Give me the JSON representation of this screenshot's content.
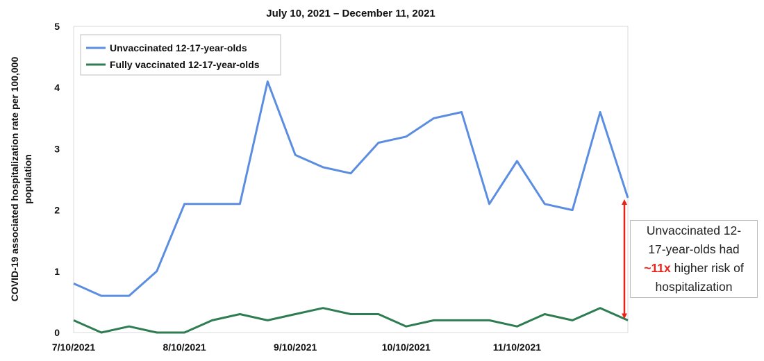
{
  "chart_data": {
    "type": "line",
    "title": "July 10, 2021 – December 11, 2021",
    "ylabel_lines": [
      "COVID-19 associated hospitalization rate per 100,000",
      "population"
    ],
    "xlabel": "",
    "ylim": [
      0,
      5
    ],
    "yticks": [
      "0",
      "1",
      "2",
      "3",
      "4",
      "5"
    ],
    "xtick_labels": [
      "7/10/2021",
      "8/10/2021",
      "9/10/2021",
      "10/10/2021",
      "11/10/2021"
    ],
    "xtick_indices": [
      0,
      4,
      8,
      12,
      16
    ],
    "legend_position": "top-left",
    "series": [
      {
        "name": "Unvaccinated 12-17-year-olds",
        "color": "#5b8de0",
        "values": [
          0.8,
          0.6,
          0.6,
          1.0,
          2.1,
          2.1,
          2.1,
          4.1,
          2.9,
          2.7,
          2.6,
          3.1,
          3.2,
          3.5,
          3.6,
          2.1,
          2.8,
          2.1,
          2.0,
          3.6,
          2.2
        ]
      },
      {
        "name": "Fully vaccinated 12-17-year-olds",
        "color": "#2e7d52",
        "values": [
          0.2,
          0.0,
          0.1,
          0.0,
          0.0,
          0.2,
          0.3,
          0.2,
          0.3,
          0.4,
          0.3,
          0.3,
          0.1,
          0.2,
          0.2,
          0.2,
          0.1,
          0.3,
          0.2,
          0.4,
          0.2
        ]
      }
    ],
    "annotation": {
      "line1": "Unvaccinated 12-",
      "line2": "17-year-olds had",
      "highlight": "~11x",
      "line3_rest": " higher risk of",
      "line4": "hospitalization",
      "arrow_color": "#e8231a",
      "arrow_from": 0.2,
      "arrow_to": 2.2
    }
  }
}
